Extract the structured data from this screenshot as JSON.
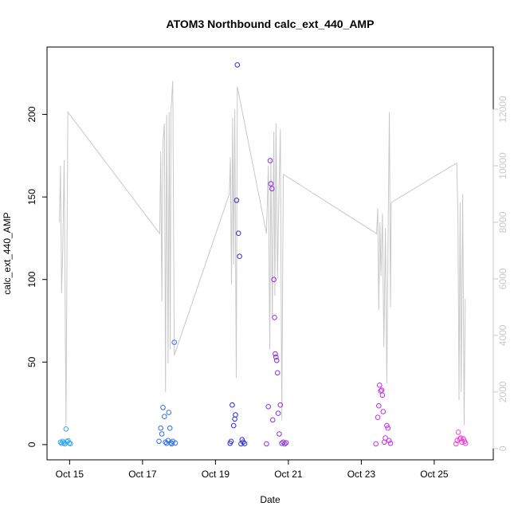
{
  "chart_data": {
    "type": "scatter",
    "title": "ATOM3 Northbound calc_ext_440_AMP",
    "xlabel": "Date",
    "ylabel": "calc_ext_440_AMP",
    "x_ticks": [
      "Oct 15",
      "Oct 17",
      "Oct 19",
      "Oct 21",
      "Oct 23",
      "Oct 25"
    ],
    "x_tick_days": [
      15,
      17,
      19,
      21,
      23,
      25
    ],
    "xlim": [
      14.38,
      26.62
    ],
    "y_ticks": [
      0,
      50,
      100,
      150,
      200
    ],
    "ylim": [
      -9.2,
      240.8
    ],
    "y2_ticks": [
      0,
      2000,
      4000,
      6000,
      8000,
      10000,
      12000
    ],
    "y2lim": [
      -400,
      14200
    ],
    "line_color": "#c8c8c8",
    "point_colors": [
      "#33a8f0",
      "#2f6ee6",
      "#2b2bdc",
      "#8a2ee6",
      "#c72ee6",
      "#f03cd8"
    ],
    "grid": false,
    "series": [
      {
        "type": "points",
        "points": [
          [
            14.75,
            1.5,
            0
          ],
          [
            14.78,
            0.8,
            0
          ],
          [
            14.81,
            2.0,
            0
          ],
          [
            14.84,
            1.2,
            0
          ],
          [
            14.87,
            0.5,
            0
          ],
          [
            14.9,
            9.5,
            0
          ],
          [
            14.93,
            1.8,
            0
          ],
          [
            14.96,
            2.4,
            0
          ],
          [
            14.99,
            1.0,
            0
          ],
          [
            15.02,
            0.6,
            0
          ],
          [
            17.45,
            2.0,
            1
          ],
          [
            17.5,
            10.0,
            1
          ],
          [
            17.53,
            6.5,
            1
          ],
          [
            17.56,
            22.5,
            1
          ],
          [
            17.6,
            17.0,
            1
          ],
          [
            17.63,
            1.5,
            1
          ],
          [
            17.66,
            0.8,
            1
          ],
          [
            17.7,
            2.5,
            1
          ],
          [
            17.72,
            19.5,
            1
          ],
          [
            17.75,
            10.0,
            1
          ],
          [
            17.78,
            1.2,
            1
          ],
          [
            17.8,
            0.5,
            1
          ],
          [
            17.83,
            2.0,
            1
          ],
          [
            17.87,
            62.0,
            1
          ],
          [
            17.9,
            1.0,
            1
          ],
          [
            19.4,
            0.8,
            2
          ],
          [
            19.43,
            2.0,
            2
          ],
          [
            19.46,
            24.0,
            2
          ],
          [
            19.5,
            11.5,
            2
          ],
          [
            19.53,
            15.5,
            2
          ],
          [
            19.55,
            18.0,
            2
          ],
          [
            19.58,
            148.0,
            2
          ],
          [
            19.6,
            230.0,
            2
          ],
          [
            19.63,
            128.0,
            2
          ],
          [
            19.66,
            114.0,
            2
          ],
          [
            19.7,
            0.5,
            2
          ],
          [
            19.73,
            3.0,
            2
          ],
          [
            19.76,
            1.5,
            2
          ],
          [
            19.8,
            0.6,
            2
          ],
          [
            20.4,
            0.5,
            3
          ],
          [
            20.45,
            23.0,
            3
          ],
          [
            20.5,
            172.0,
            3
          ],
          [
            20.52,
            158.0,
            3
          ],
          [
            20.55,
            155.0,
            3
          ],
          [
            20.57,
            15.0,
            3
          ],
          [
            20.6,
            100.0,
            3
          ],
          [
            20.62,
            77.0,
            3
          ],
          [
            20.64,
            55.0,
            3
          ],
          [
            20.66,
            53.0,
            3
          ],
          [
            20.68,
            51.0,
            3
          ],
          [
            20.7,
            43.5,
            3
          ],
          [
            20.72,
            19.0,
            3
          ],
          [
            20.75,
            6.5,
            3
          ],
          [
            20.78,
            24.0,
            3
          ],
          [
            20.82,
            0.8,
            3
          ],
          [
            20.86,
            1.5,
            3
          ],
          [
            20.9,
            0.5,
            3
          ],
          [
            20.94,
            1.2,
            3
          ],
          [
            23.4,
            0.5,
            4
          ],
          [
            23.45,
            16.5,
            4
          ],
          [
            23.48,
            23.5,
            4
          ],
          [
            23.5,
            36.0,
            4
          ],
          [
            23.53,
            32.5,
            4
          ],
          [
            23.56,
            33.0,
            4
          ],
          [
            23.58,
            30.0,
            4
          ],
          [
            23.6,
            20.0,
            4
          ],
          [
            23.63,
            1.5,
            4
          ],
          [
            23.66,
            4.0,
            4
          ],
          [
            23.7,
            11.5,
            4
          ],
          [
            23.73,
            10.0,
            4
          ],
          [
            23.76,
            2.5,
            4
          ],
          [
            23.8,
            0.8,
            4
          ],
          [
            25.6,
            0.5,
            5
          ],
          [
            25.63,
            2.5,
            5
          ],
          [
            25.66,
            7.5,
            5
          ],
          [
            25.7,
            3.5,
            5
          ],
          [
            25.73,
            4.0,
            5
          ],
          [
            25.76,
            1.5,
            5
          ],
          [
            25.8,
            3.5,
            5
          ],
          [
            25.83,
            2.0,
            5
          ],
          [
            25.86,
            0.8,
            5
          ]
        ]
      },
      {
        "type": "line",
        "axis": "right",
        "points": [
          [
            14.72,
            8000
          ],
          [
            14.75,
            10000
          ],
          [
            14.78,
            5500
          ],
          [
            14.81,
            7000
          ],
          [
            14.85,
            10200
          ],
          [
            14.9,
            800
          ],
          [
            14.95,
            11900
          ],
          [
            17.47,
            7600
          ],
          [
            17.5,
            10500
          ],
          [
            17.53,
            5200
          ],
          [
            17.56,
            10800
          ],
          [
            17.6,
            11500
          ],
          [
            17.63,
            2000
          ],
          [
            17.66,
            11800
          ],
          [
            17.7,
            3000
          ],
          [
            17.73,
            11900
          ],
          [
            17.76,
            3500
          ],
          [
            17.78,
            12000
          ],
          [
            17.83,
            13000
          ],
          [
            17.87,
            3300
          ],
          [
            19.38,
            9000
          ],
          [
            19.41,
            10300
          ],
          [
            19.44,
            5800
          ],
          [
            19.47,
            11700
          ],
          [
            19.5,
            6500
          ],
          [
            19.53,
            12000
          ],
          [
            19.57,
            2500
          ],
          [
            19.6,
            12800
          ],
          [
            20.4,
            7600
          ],
          [
            20.45,
            10000
          ],
          [
            20.49,
            3500
          ],
          [
            20.52,
            10300
          ],
          [
            20.56,
            4600
          ],
          [
            20.6,
            11200
          ],
          [
            20.63,
            5400
          ],
          [
            20.66,
            11500
          ],
          [
            20.7,
            6000
          ],
          [
            20.74,
            9000
          ],
          [
            20.78,
            11300
          ],
          [
            20.82,
            1000
          ],
          [
            20.86,
            9700
          ],
          [
            23.42,
            7600
          ],
          [
            23.45,
            8500
          ],
          [
            23.48,
            4900
          ],
          [
            23.51,
            8000
          ],
          [
            23.54,
            6100
          ],
          [
            23.58,
            8300
          ],
          [
            23.62,
            3600
          ],
          [
            23.66,
            7800
          ],
          [
            23.7,
            2300
          ],
          [
            23.74,
            8200
          ],
          [
            23.77,
            11900
          ],
          [
            23.8,
            5000
          ],
          [
            23.82,
            8700
          ],
          [
            25.62,
            10100
          ],
          [
            25.65,
            8300
          ],
          [
            25.68,
            1700
          ],
          [
            25.71,
            8700
          ],
          [
            25.74,
            2000
          ],
          [
            25.78,
            9000
          ],
          [
            25.82,
            800
          ],
          [
            25.85,
            5300
          ]
        ]
      }
    ]
  }
}
